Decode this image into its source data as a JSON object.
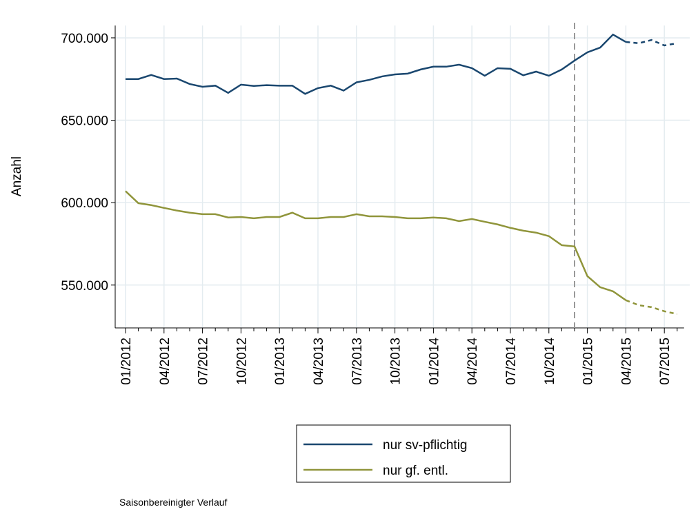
{
  "chart_data": {
    "type": "line",
    "y_label": "Anzahl",
    "note": "Saisonbereinigter Verlauf",
    "categories": [
      "01/2012",
      null,
      null,
      "04/2012",
      null,
      null,
      "07/2012",
      null,
      null,
      "10/2012",
      null,
      null,
      "01/2013",
      null,
      null,
      "04/2013",
      null,
      null,
      "07/2013",
      null,
      null,
      "10/2013",
      null,
      null,
      "01/2014",
      null,
      null,
      "04/2014",
      null,
      null,
      "07/2014",
      null,
      null,
      "10/2014",
      null,
      null,
      "01/2015",
      null,
      null,
      "04/2015",
      null,
      null,
      "07/2015",
      null
    ],
    "series": [
      {
        "name": "nur sv-pflichtig",
        "color": "#1a476f",
        "values": [
          675000,
          675000,
          677500,
          675000,
          675300,
          672000,
          670300,
          671000,
          666600,
          671600,
          670800,
          671300,
          671000,
          671000,
          666000,
          669500,
          671000,
          668000,
          673000,
          674500,
          676600,
          677800,
          678300,
          680800,
          682500,
          682500,
          683700,
          681600,
          677000,
          681600,
          681200,
          677300,
          679500,
          677000,
          680800,
          686200,
          691200,
          694100,
          702000,
          697500,
          696700,
          698700,
          695400,
          696700
        ]
      },
      {
        "name": "nur gf. entl.",
        "color": "#90953b",
        "values": [
          607000,
          599700,
          598500,
          596800,
          595200,
          593900,
          593000,
          593000,
          591000,
          591300,
          590500,
          591300,
          591300,
          593900,
          590500,
          590500,
          591300,
          591300,
          593000,
          591700,
          591700,
          591300,
          590500,
          590500,
          591000,
          590500,
          588800,
          590100,
          588400,
          586800,
          584700,
          583000,
          581800,
          579700,
          574200,
          573400,
          555400,
          548700,
          546200,
          540800,
          537800,
          536600,
          534100,
          532400
        ]
      }
    ],
    "dashed_from_index": 39,
    "vline_index": 35,
    "ylim": [
      524000,
      707500
    ],
    "yticks": [
      {
        "value": 550000,
        "label": "550.000"
      },
      {
        "value": 600000,
        "label": "600.000"
      },
      {
        "value": 650000,
        "label": "650.000"
      },
      {
        "value": 700000,
        "label": "700.000"
      }
    ],
    "grid": true
  }
}
